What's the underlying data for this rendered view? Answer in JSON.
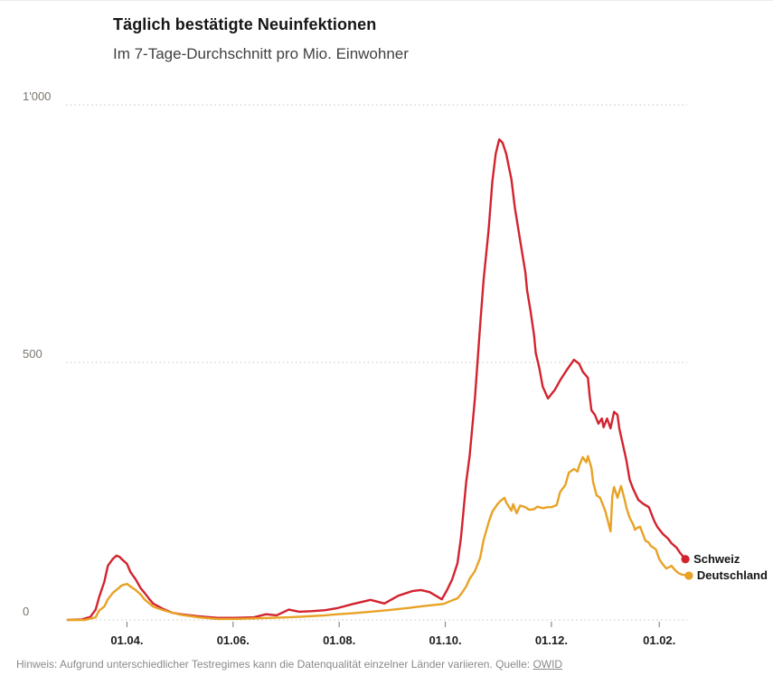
{
  "header": {
    "title": "Täglich bestätigte Neuinfektionen",
    "subtitle": "Im 7-Tage-Durchschnitt pro Mio. Einwohner"
  },
  "footer": {
    "note": "Hinweis: Aufgrund unterschiedlicher Testregimes kann die Datenqualität einzelner Länder variieren. Quelle: ",
    "source_label": "OWID"
  },
  "chart_data": {
    "type": "line",
    "title": "Täglich bestätigte Neuinfektionen",
    "subtitle": "Im 7-Tage-Durchschnitt pro Mio. Einwohner",
    "grid": "dotted horizontal gridlines",
    "legend_position": "end-of-line labels with dots",
    "ylim": [
      0,
      1000
    ],
    "x_unit": "days since 2020-02-27",
    "x_range_days": [
      0,
      356
    ],
    "y_ticks": [
      {
        "label": "0",
        "value": 0
      },
      {
        "label": "500",
        "value": 500
      },
      {
        "label": "1'000",
        "value": 1000
      }
    ],
    "x_ticks": [
      {
        "label": "01.04.",
        "day": 34
      },
      {
        "label": "01.06.",
        "day": 95
      },
      {
        "label": "01.08.",
        "day": 156
      },
      {
        "label": "01.10.",
        "day": 217
      },
      {
        "label": "01.12.",
        "day": 278
      },
      {
        "label": "01.02.",
        "day": 340
      }
    ],
    "series": [
      {
        "name": "Schweiz",
        "color": "#d2232e",
        "points": [
          [
            0,
            0
          ],
          [
            8,
            1
          ],
          [
            13,
            6
          ],
          [
            16,
            20
          ],
          [
            18,
            44
          ],
          [
            21,
            74
          ],
          [
            23,
            105
          ],
          [
            26,
            119
          ],
          [
            28,
            125
          ],
          [
            30,
            122
          ],
          [
            31,
            118
          ],
          [
            34,
            109
          ],
          [
            36,
            93
          ],
          [
            39,
            79
          ],
          [
            42,
            61
          ],
          [
            44,
            53
          ],
          [
            47,
            40
          ],
          [
            49,
            32
          ],
          [
            55,
            21
          ],
          [
            60,
            14
          ],
          [
            65,
            11
          ],
          [
            75,
            7
          ],
          [
            86,
            4
          ],
          [
            96,
            4
          ],
          [
            107,
            5
          ],
          [
            114,
            11
          ],
          [
            120,
            9
          ],
          [
            127,
            20
          ],
          [
            133,
            16
          ],
          [
            140,
            17
          ],
          [
            148,
            19
          ],
          [
            155,
            23
          ],
          [
            164,
            31
          ],
          [
            174,
            39
          ],
          [
            182,
            32
          ],
          [
            190,
            47
          ],
          [
            198,
            56
          ],
          [
            203,
            58
          ],
          [
            208,
            54
          ],
          [
            215,
            40
          ],
          [
            218,
            58
          ],
          [
            221,
            79
          ],
          [
            224,
            110
          ],
          [
            226,
            160
          ],
          [
            229,
            267
          ],
          [
            231,
            319
          ],
          [
            234,
            430
          ],
          [
            237,
            570
          ],
          [
            239,
            660
          ],
          [
            242,
            760
          ],
          [
            244,
            850
          ],
          [
            246,
            905
          ],
          [
            248,
            933
          ],
          [
            250,
            926
          ],
          [
            252,
            905
          ],
          [
            255,
            855
          ],
          [
            257,
            800
          ],
          [
            260,
            737
          ],
          [
            263,
            675
          ],
          [
            264,
            640
          ],
          [
            266,
            600
          ],
          [
            268,
            553
          ],
          [
            269,
            518
          ],
          [
            271,
            490
          ],
          [
            273,
            453
          ],
          [
            276,
            430
          ],
          [
            280,
            447
          ],
          [
            283,
            465
          ],
          [
            287,
            486
          ],
          [
            291,
            505
          ],
          [
            294,
            497
          ],
          [
            296,
            482
          ],
          [
            299,
            470
          ],
          [
            300,
            435
          ],
          [
            301,
            407
          ],
          [
            303,
            398
          ],
          [
            305,
            381
          ],
          [
            307,
            391
          ],
          [
            308,
            374
          ],
          [
            310,
            391
          ],
          [
            312,
            372
          ],
          [
            314,
            404
          ],
          [
            316,
            398
          ],
          [
            317,
            372
          ],
          [
            319,
            342
          ],
          [
            321,
            311
          ],
          [
            323,
            272
          ],
          [
            325,
            254
          ],
          [
            328,
            233
          ],
          [
            331,
            225
          ],
          [
            334,
            219
          ],
          [
            337,
            193
          ],
          [
            339,
            180
          ],
          [
            342,
            167
          ],
          [
            345,
            158
          ],
          [
            347,
            149
          ],
          [
            350,
            140
          ],
          [
            352,
            130
          ],
          [
            355,
            118
          ]
        ]
      },
      {
        "name": "Deutschland",
        "color": "#e8a225",
        "points": [
          [
            0,
            0
          ],
          [
            10,
            0
          ],
          [
            16,
            5
          ],
          [
            18,
            18
          ],
          [
            21,
            26
          ],
          [
            23,
            40
          ],
          [
            26,
            53
          ],
          [
            29,
            61
          ],
          [
            31,
            67
          ],
          [
            34,
            70
          ],
          [
            36,
            65
          ],
          [
            39,
            58
          ],
          [
            42,
            49
          ],
          [
            44,
            40
          ],
          [
            49,
            26
          ],
          [
            55,
            19
          ],
          [
            60,
            14
          ],
          [
            65,
            10
          ],
          [
            75,
            5
          ],
          [
            86,
            2
          ],
          [
            96,
            2
          ],
          [
            107,
            3
          ],
          [
            117,
            4
          ],
          [
            127,
            5
          ],
          [
            138,
            7
          ],
          [
            148,
            9
          ],
          [
            155,
            11
          ],
          [
            164,
            13
          ],
          [
            174,
            16
          ],
          [
            184,
            19
          ],
          [
            195,
            23
          ],
          [
            205,
            27
          ],
          [
            216,
            31
          ],
          [
            221,
            38
          ],
          [
            224,
            42
          ],
          [
            226,
            50
          ],
          [
            229,
            65
          ],
          [
            231,
            80
          ],
          [
            234,
            95
          ],
          [
            237,
            120
          ],
          [
            239,
            155
          ],
          [
            242,
            190
          ],
          [
            244,
            210
          ],
          [
            247,
            225
          ],
          [
            249,
            232
          ],
          [
            251,
            237
          ],
          [
            252,
            228
          ],
          [
            255,
            212
          ],
          [
            256,
            225
          ],
          [
            258,
            207
          ],
          [
            260,
            222
          ],
          [
            263,
            219
          ],
          [
            265,
            214
          ],
          [
            268,
            215
          ],
          [
            270,
            220
          ],
          [
            273,
            217
          ],
          [
            276,
            219
          ],
          [
            278,
            219
          ],
          [
            281,
            223
          ],
          [
            283,
            248
          ],
          [
            286,
            262
          ],
          [
            288,
            286
          ],
          [
            291,
            293
          ],
          [
            293,
            288
          ],
          [
            294,
            300
          ],
          [
            296,
            316
          ],
          [
            298,
            306
          ],
          [
            299,
            318
          ],
          [
            301,
            295
          ],
          [
            302,
            267
          ],
          [
            304,
            242
          ],
          [
            306,
            237
          ],
          [
            308,
            220
          ],
          [
            309,
            211
          ],
          [
            312,
            172
          ],
          [
            313,
            240
          ],
          [
            314,
            258
          ],
          [
            316,
            237
          ],
          [
            318,
            260
          ],
          [
            320,
            235
          ],
          [
            321,
            219
          ],
          [
            323,
            198
          ],
          [
            325,
            185
          ],
          [
            326,
            175
          ],
          [
            327,
            178
          ],
          [
            329,
            181
          ],
          [
            332,
            154
          ],
          [
            334,
            150
          ],
          [
            335,
            144
          ],
          [
            338,
            137
          ],
          [
            340,
            118
          ],
          [
            342,
            108
          ],
          [
            344,
            100
          ],
          [
            346,
            103
          ],
          [
            347,
            105
          ],
          [
            349,
            97
          ],
          [
            351,
            91
          ],
          [
            353,
            88
          ],
          [
            357,
            86
          ]
        ]
      }
    ]
  }
}
